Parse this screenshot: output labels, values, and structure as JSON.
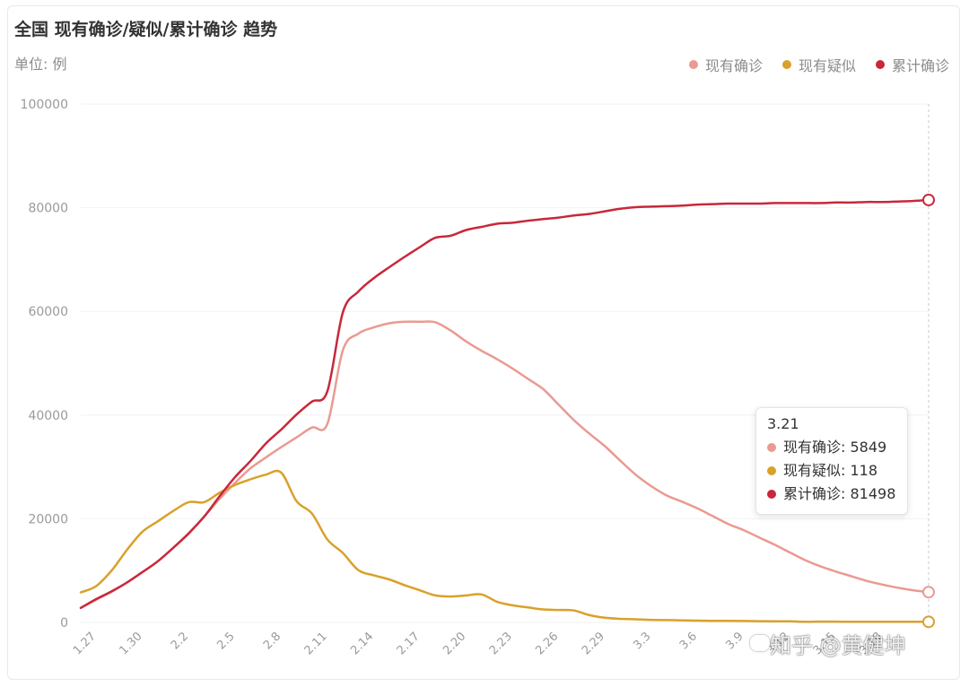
{
  "header": {
    "title": "全国 现有确诊/疑似/累计确诊 趋势",
    "unit": "单位: 例"
  },
  "legend": [
    {
      "label": "现有确诊",
      "color": "#ea9a91"
    },
    {
      "label": "现有疑似",
      "color": "#d9a12a"
    },
    {
      "label": "累计确诊",
      "color": "#c8283a"
    }
  ],
  "tooltip": {
    "date": "3.21",
    "rows": [
      {
        "label": "现有确诊",
        "value": "5849",
        "color": "#ea9a91"
      },
      {
        "label": "现有疑似",
        "value": "118",
        "color": "#d9a12a"
      },
      {
        "label": "累计确诊",
        "value": "81498",
        "color": "#c8283a"
      }
    ]
  },
  "watermark": "知乎 @黄健坤",
  "chart_data": {
    "type": "line",
    "title": "全国 现有确诊/疑似/累计确诊 趋势",
    "ylabel": "单位: 例",
    "ylim": [
      0,
      100000
    ],
    "yticks": [
      0,
      20000,
      40000,
      60000,
      80000,
      100000
    ],
    "grid": "horizontal",
    "legend_position": "top-right",
    "xlim": [
      "1.26",
      "3.21"
    ],
    "xticks": [
      "1.27",
      "1.30",
      "2.2",
      "2.5",
      "2.8",
      "2.11",
      "2.14",
      "2.17",
      "2.20",
      "2.23",
      "2.26",
      "2.29",
      "3.3",
      "3.6",
      "3.9",
      "3.12",
      "3.15",
      "3.18"
    ],
    "x": [
      "1.26",
      "1.27",
      "1.28",
      "1.29",
      "1.30",
      "1.31",
      "2.1",
      "2.2",
      "2.3",
      "2.4",
      "2.5",
      "2.6",
      "2.7",
      "2.8",
      "2.9",
      "2.10",
      "2.11",
      "2.12",
      "2.13",
      "2.14",
      "2.15",
      "2.16",
      "2.17",
      "2.18",
      "2.19",
      "2.20",
      "2.21",
      "2.22",
      "2.23",
      "2.24",
      "2.25",
      "2.26",
      "2.27",
      "2.28",
      "2.29",
      "3.1",
      "3.2",
      "3.3",
      "3.4",
      "3.5",
      "3.6",
      "3.7",
      "3.8",
      "3.9",
      "3.10",
      "3.11",
      "3.12",
      "3.13",
      "3.14",
      "3.15",
      "3.16",
      "3.17",
      "3.18",
      "3.19",
      "3.20",
      "3.21"
    ],
    "series": [
      {
        "name": "现有确诊",
        "color": "#ea9a91",
        "values": [
          2800,
          4400,
          5900,
          7700,
          9700,
          11800,
          14400,
          17100,
          20400,
          23800,
          26900,
          29700,
          31800,
          33800,
          35700,
          37600,
          38300,
          52500,
          55700,
          56900,
          57700,
          58000,
          58000,
          57900,
          56300,
          54200,
          52400,
          50800,
          49000,
          47000,
          45000,
          42000,
          39000,
          36400,
          34000,
          31200,
          28500,
          26300,
          24500,
          23300,
          22000,
          20500,
          19000,
          17800,
          16400,
          15000,
          13500,
          12000,
          10800,
          9800,
          8900,
          8000,
          7300,
          6700,
          6200,
          5849
        ]
      },
      {
        "name": "现有疑似",
        "color": "#d9a12a",
        "values": [
          5800,
          7000,
          10000,
          14000,
          17500,
          19500,
          21500,
          23200,
          23200,
          25000,
          26500,
          27600,
          28500,
          28900,
          23400,
          21000,
          16000,
          13400,
          10100,
          9100,
          8300,
          7200,
          6200,
          5200,
          5000,
          5200,
          5400,
          4000,
          3300,
          2900,
          2500,
          2400,
          2300,
          1400,
          900,
          700,
          600,
          500,
          450,
          400,
          350,
          320,
          300,
          270,
          250,
          230,
          200,
          120,
          150,
          150,
          130,
          120,
          118,
          118,
          118,
          118
        ]
      },
      {
        "name": "累计确诊",
        "color": "#c8283a",
        "values": [
          2800,
          4500,
          6000,
          7700,
          9700,
          11800,
          14400,
          17200,
          20400,
          24300,
          28000,
          31100,
          34500,
          37200,
          40100,
          42600,
          44600,
          59800,
          63800,
          66400,
          68500,
          70500,
          72400,
          74200,
          74600,
          75700,
          76300,
          76900,
          77100,
          77500,
          77800,
          78100,
          78500,
          78800,
          79300,
          79800,
          80100,
          80200,
          80300,
          80400,
          80600,
          80700,
          80800,
          80800,
          80800,
          80900,
          80900,
          80900,
          80900,
          81000,
          81000,
          81100,
          81100,
          81200,
          81300,
          81498
        ]
      }
    ]
  }
}
